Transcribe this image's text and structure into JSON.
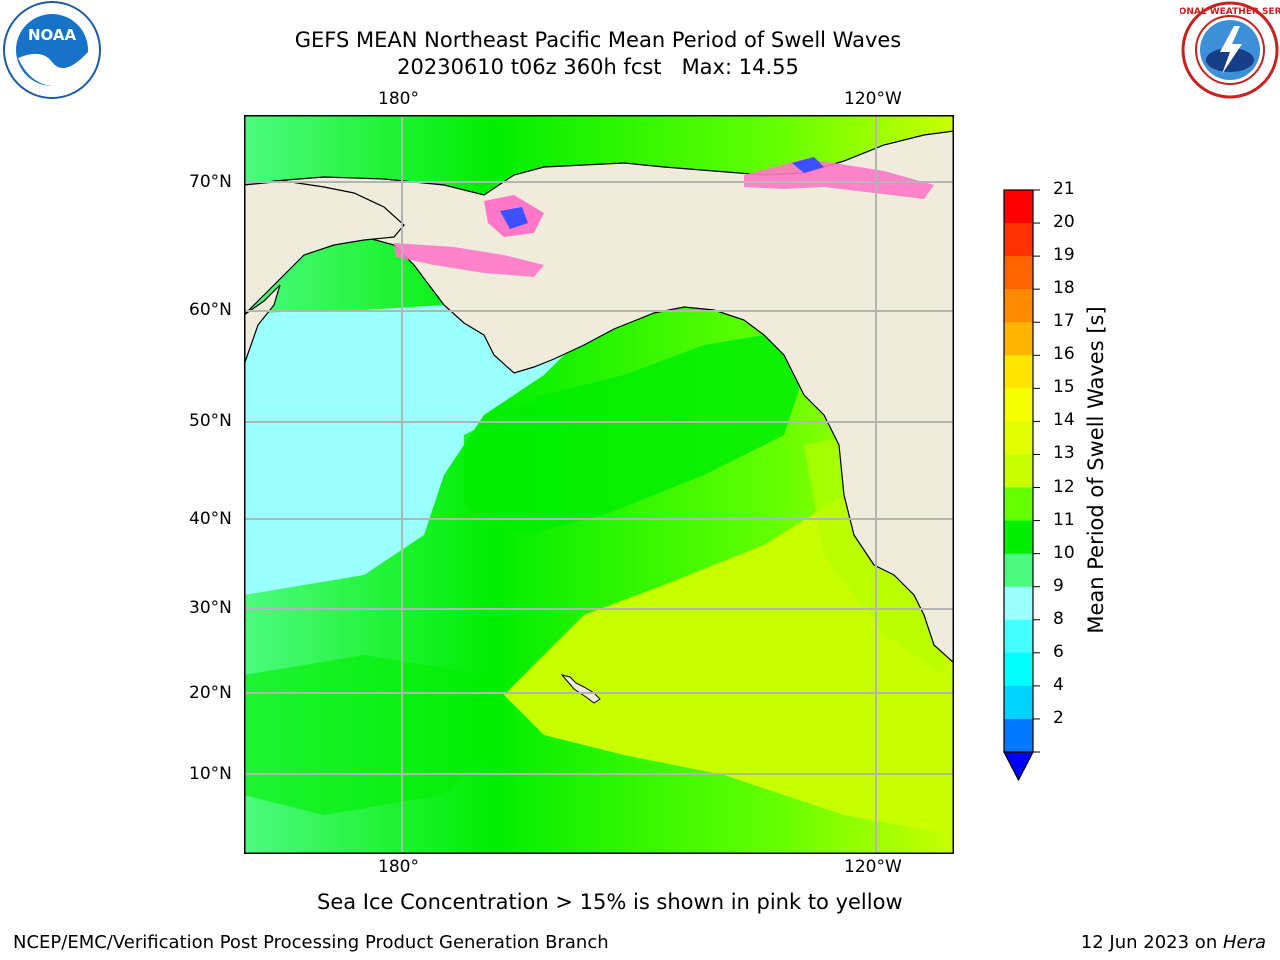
{
  "title": {
    "line1": "GEFS MEAN Northeast Pacific Mean Period of Swell Waves",
    "line2": "20230610 t06z 360h fcst   Max: 14.55"
  },
  "logos": {
    "left": {
      "icon": "noaa-logo",
      "text": "NOAA"
    },
    "right": {
      "icon": "nws-logo",
      "text": "NATIONAL WEATHER SERVICE"
    }
  },
  "map": {
    "lon_labels_top": [
      "180°",
      "120°W"
    ],
    "lon_labels_bottom": [
      "180°",
      "120°W"
    ],
    "lat_labels": [
      "70°N",
      "60°N",
      "50°N",
      "40°N",
      "30°N",
      "20°N",
      "10°N"
    ],
    "land_color": "#efecdc",
    "grid_color": "#b4b4b4"
  },
  "colorbar": {
    "label": "Mean Period of Swell Waves [s]",
    "ticks": [
      "21",
      "20",
      "19",
      "18",
      "17",
      "16",
      "15",
      "14",
      "13",
      "12",
      "11",
      "10",
      "9",
      "8",
      "6",
      "4",
      "2"
    ],
    "colors": [
      "#ff0000",
      "#ff3200",
      "#ff6400",
      "#ff8c00",
      "#ffb400",
      "#ffe600",
      "#f5ff00",
      "#e1ff00",
      "#c8ff00",
      "#64ff00",
      "#00ee00",
      "#4dfa80",
      "#9bffff",
      "#46ffff",
      "#00ffff",
      "#00d2ff",
      "#0078ff"
    ],
    "extend_color": "#0000ff"
  },
  "caption": "Sea Ice Concentration > 15% is shown in pink to yellow",
  "footer": {
    "left": "NCEP/EMC/Verification Post Processing Product Generation Branch",
    "right_prefix": "12 Jun 2023 on ",
    "right_host": "Hera"
  }
}
